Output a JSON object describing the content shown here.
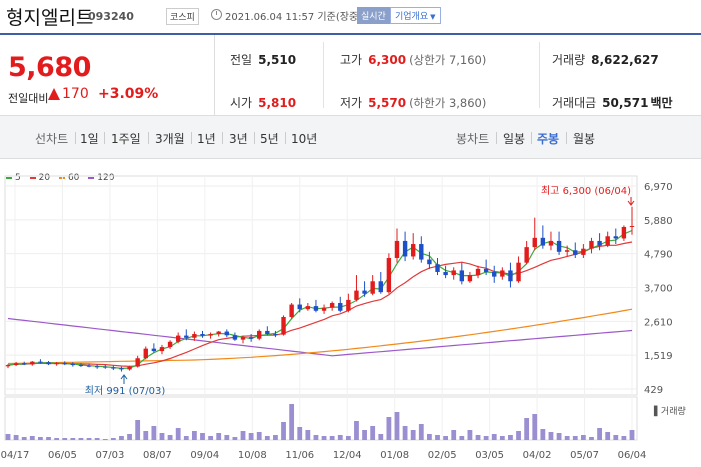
{
  "header": {
    "name": "형지엘리트",
    "code": "093240",
    "market": "코스피",
    "timestamp": "2021.06.04 11:57 기준(장중)",
    "realtime": "실시간",
    "company_info": "기업개요"
  },
  "price": {
    "current": "5,680",
    "change_label": "전일대비",
    "change": "170",
    "change_pct": "+3.09%"
  },
  "quotes": {
    "prev_label": "전일",
    "prev": "5,510",
    "high_label": "고가",
    "high": "6,300",
    "upper_limit": "(상한가 7,160)",
    "volume_label": "거래량",
    "volume": "8,622,627",
    "open_label": "시가",
    "open": "5,810",
    "low_label": "저가",
    "low": "5,570",
    "lower_limit": "(하한가 3,860)",
    "amount_label": "거래대금",
    "amount": "50,571",
    "amount_unit": "백만"
  },
  "tabs": {
    "line_label": "선차트",
    "line": [
      "1일",
      "1주일",
      "3개월",
      "1년",
      "3년",
      "5년",
      "10년"
    ],
    "candle_label": "봉차트",
    "candle": [
      "일봉",
      "주봉",
      "월봉"
    ],
    "active": "주봉"
  },
  "colors": {
    "up": "#e21c1c",
    "down": "#1d4fc9",
    "ma5": "#3daa3d",
    "ma20": "#e03a3a",
    "ma60": "#f08a1a",
    "ma120": "#9b59c9"
  },
  "chart_data": {
    "type": "candlestick",
    "legend": [
      "5",
      "20",
      "60",
      "120"
    ],
    "y_ticks": [
      "6,970",
      "5,880",
      "4,790",
      "3,700",
      "2,610",
      "1,519",
      "429"
    ],
    "ylim": [
      429,
      6970
    ],
    "x_ticks": [
      "04/17",
      "06/05",
      "07/03",
      "08/07",
      "09/04",
      "10/08",
      "11/06",
      "12/04",
      "01/08",
      "02/05",
      "03/05",
      "04/02",
      "05/07",
      "06/04"
    ],
    "annotations": {
      "high": "최고 6,300 (06/04)",
      "low": "최저 991 (07/03)"
    },
    "volume_label": "거래량",
    "candles": [
      [
        1160,
        1230,
        1100,
        1200
      ],
      [
        1200,
        1300,
        1170,
        1260
      ],
      [
        1260,
        1310,
        1200,
        1220
      ],
      [
        1220,
        1330,
        1180,
        1310
      ],
      [
        1310,
        1390,
        1250,
        1290
      ],
      [
        1290,
        1330,
        1200,
        1230
      ],
      [
        1230,
        1300,
        1180,
        1260
      ],
      [
        1260,
        1320,
        1200,
        1240
      ],
      [
        1240,
        1290,
        1150,
        1200
      ],
      [
        1200,
        1260,
        1140,
        1180
      ],
      [
        1180,
        1250,
        1130,
        1160
      ],
      [
        1160,
        1230,
        1080,
        1150
      ],
      [
        1150,
        1210,
        1080,
        1120
      ],
      [
        1120,
        1180,
        1040,
        1100
      ],
      [
        1100,
        1150,
        991,
        1060
      ],
      [
        1060,
        1180,
        1020,
        1150
      ],
      [
        1150,
        1500,
        1120,
        1420
      ],
      [
        1420,
        1800,
        1380,
        1730
      ],
      [
        1730,
        1900,
        1600,
        1650
      ],
      [
        1650,
        1850,
        1550,
        1780
      ],
      [
        1780,
        2000,
        1720,
        1950
      ],
      [
        1950,
        2250,
        1900,
        2150
      ],
      [
        2150,
        2350,
        2000,
        2080
      ],
      [
        2080,
        2280,
        1980,
        2200
      ],
      [
        2200,
        2300,
        2080,
        2150
      ],
      [
        2150,
        2250,
        2050,
        2200
      ],
      [
        2200,
        2300,
        2120,
        2280
      ],
      [
        2280,
        2350,
        2100,
        2160
      ],
      [
        2160,
        2250,
        1980,
        2020
      ],
      [
        2020,
        2150,
        1900,
        2100
      ],
      [
        2100,
        2200,
        1950,
        2050
      ],
      [
        2050,
        2350,
        2000,
        2300
      ],
      [
        2300,
        2450,
        2150,
        2200
      ],
      [
        2200,
        2300,
        2100,
        2180
      ],
      [
        2180,
        2800,
        2150,
        2750
      ],
      [
        2750,
        3200,
        2700,
        3150
      ],
      [
        3150,
        3350,
        2900,
        3000
      ],
      [
        3000,
        3200,
        2950,
        3100
      ],
      [
        3100,
        3300,
        2900,
        2950
      ],
      [
        2950,
        3150,
        2850,
        3050
      ],
      [
        3050,
        3250,
        2950,
        3200
      ],
      [
        3200,
        3400,
        2900,
        2950
      ],
      [
        2950,
        3500,
        2900,
        3300
      ],
      [
        3300,
        4100,
        3250,
        3600
      ],
      [
        3600,
        3900,
        3400,
        3500
      ],
      [
        3500,
        4100,
        3450,
        3900
      ],
      [
        3900,
        4200,
        3500,
        3550
      ],
      [
        3550,
        4800,
        3500,
        4650
      ],
      [
        4650,
        5600,
        4500,
        5200
      ],
      [
        5200,
        5500,
        4550,
        4700
      ],
      [
        4700,
        5450,
        4600,
        5100
      ],
      [
        5100,
        5350,
        4500,
        4600
      ],
      [
        4600,
        4850,
        4300,
        4450
      ],
      [
        4450,
        4650,
        4100,
        4200
      ],
      [
        4200,
        4400,
        4000,
        4100
      ],
      [
        4100,
        4350,
        3950,
        4250
      ],
      [
        4250,
        4500,
        3800,
        3900
      ],
      [
        3900,
        4200,
        3850,
        4100
      ],
      [
        4100,
        4400,
        4000,
        4300
      ],
      [
        4300,
        4600,
        4100,
        4200
      ],
      [
        4200,
        4400,
        3850,
        4050
      ],
      [
        4050,
        4350,
        3950,
        4250
      ],
      [
        4250,
        4500,
        3700,
        3900
      ],
      [
        3900,
        4700,
        3850,
        4500
      ],
      [
        4500,
        5200,
        4450,
        5000
      ],
      [
        5000,
        5950,
        4900,
        5300
      ],
      [
        5300,
        5700,
        4950,
        5050
      ],
      [
        5050,
        5500,
        4900,
        5200
      ],
      [
        5200,
        5500,
        4750,
        4850
      ],
      [
        4850,
        5050,
        4700,
        4900
      ],
      [
        4900,
        5150,
        4650,
        4750
      ],
      [
        4750,
        5100,
        4650,
        4950
      ],
      [
        4950,
        5300,
        4800,
        5200
      ],
      [
        5200,
        5450,
        4900,
        5050
      ],
      [
        5050,
        5500,
        5000,
        5350
      ],
      [
        5350,
        5600,
        5100,
        5280
      ],
      [
        5280,
        5700,
        5200,
        5650
      ],
      [
        5650,
        6300,
        5400,
        5680
      ]
    ],
    "volume": [
      6,
      5,
      3,
      4,
      3,
      3,
      2,
      2,
      2,
      2,
      2,
      2,
      1,
      2,
      4,
      6,
      20,
      9,
      14,
      7,
      5,
      12,
      4,
      9,
      7,
      4,
      7,
      5,
      3,
      9,
      7,
      8,
      4,
      5,
      18,
      36,
      13,
      10,
      5,
      4,
      4,
      5,
      4,
      19,
      10,
      14,
      6,
      23,
      28,
      14,
      10,
      16,
      6,
      5,
      4,
      10,
      4,
      10,
      5,
      4,
      6,
      4,
      5,
      9,
      22,
      26,
      11,
      8,
      7,
      4,
      4,
      5,
      3,
      12,
      8,
      5,
      4,
      10
    ]
  }
}
